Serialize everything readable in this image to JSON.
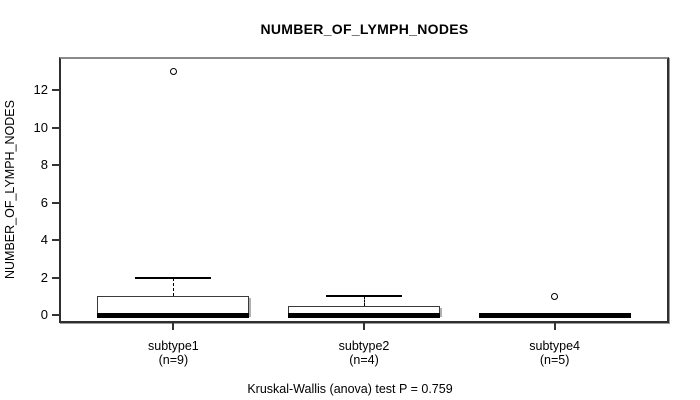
{
  "title": "NUMBER_OF_LYMPH_NODES",
  "caption": "Kruskal-Wallis (anova) test P = 0.759",
  "chart_data": {
    "type": "boxplot",
    "title": "NUMBER_OF_LYMPH_NODES",
    "ylabel": "NUMBER_OF_LYMPH_NODES",
    "xlabel": "",
    "yticks": [
      0,
      2,
      4,
      6,
      8,
      10,
      12
    ],
    "ylim": [
      -0.45,
      13.75
    ],
    "grid": false,
    "stat_caption": "Kruskal-Wallis (anova) test P = 0.759",
    "groups": [
      {
        "label": "subtype1",
        "n": 9,
        "n_label": "(n=9)",
        "whisker_low": 0,
        "q1": 0,
        "median": 0,
        "q3": 1,
        "whisker_high": 2,
        "outliers": [
          13
        ]
      },
      {
        "label": "subtype2",
        "n": 4,
        "n_label": "(n=4)",
        "whisker_low": 0,
        "q1": 0,
        "median": 0,
        "q3": 0.5,
        "whisker_high": 1,
        "outliers": []
      },
      {
        "label": "subtype4",
        "n": 5,
        "n_label": "(n=5)",
        "whisker_low": 0,
        "q1": 0,
        "median": 0,
        "q3": 0,
        "whisker_high": 0,
        "outliers": [
          1
        ]
      }
    ],
    "colors": {
      "line": "#000000",
      "box_fill": "#ffffff",
      "frame": "#2f2f2f",
      "shadow": "#9a9a9a"
    }
  }
}
